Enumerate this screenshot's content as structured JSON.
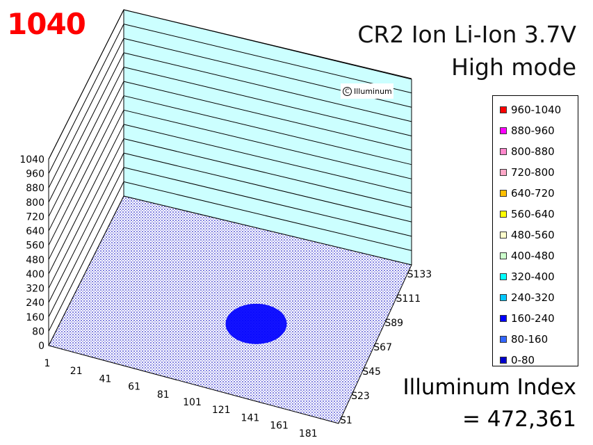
{
  "header": {
    "max_value": "1040",
    "title_line1": "CR2 Ion Li-Ion 3.7V",
    "title_line2": "High mode"
  },
  "watermark": {
    "text": "Illuminum",
    "icon": "copyright-icon"
  },
  "index": {
    "label": "Illuminum Index",
    "value": "= 472,361"
  },
  "chart_data": {
    "type": "surface3d",
    "z_ticks": [
      "0",
      "80",
      "160",
      "240",
      "320",
      "400",
      "480",
      "560",
      "640",
      "720",
      "800",
      "880",
      "960",
      "1040"
    ],
    "x_ticks": [
      "1",
      "21",
      "41",
      "61",
      "81",
      "101",
      "121",
      "141",
      "161",
      "181"
    ],
    "y_ticks": [
      "S1",
      "S23",
      "S45",
      "S67",
      "S89",
      "S111",
      "S133"
    ],
    "zlim": [
      0,
      1040
    ],
    "legend": [
      {
        "label": "960-1040",
        "color": "#ff0000"
      },
      {
        "label": "880-960",
        "color": "#ff00ff"
      },
      {
        "label": "800-880",
        "color": "#ff88cc"
      },
      {
        "label": "720-800",
        "color": "#ffa8c8"
      },
      {
        "label": "640-720",
        "color": "#ffc000"
      },
      {
        "label": "560-640",
        "color": "#ffff00"
      },
      {
        "label": "480-560",
        "color": "#ffffcc"
      },
      {
        "label": "400-480",
        "color": "#ccffcc"
      },
      {
        "label": "320-400",
        "color": "#00ffff"
      },
      {
        "label": "240-320",
        "color": "#00c8ff"
      },
      {
        "label": "160-240",
        "color": "#0000ff"
      },
      {
        "label": "80-160",
        "color": "#3366ff"
      },
      {
        "label": "0-80",
        "color": "#0000cc"
      }
    ],
    "hotspot": {
      "center_x": 121,
      "center_y": 67,
      "radius_x": 12,
      "radius_y": 22,
      "value_range": "160-240"
    },
    "background_range": "0-80",
    "grid": true
  }
}
